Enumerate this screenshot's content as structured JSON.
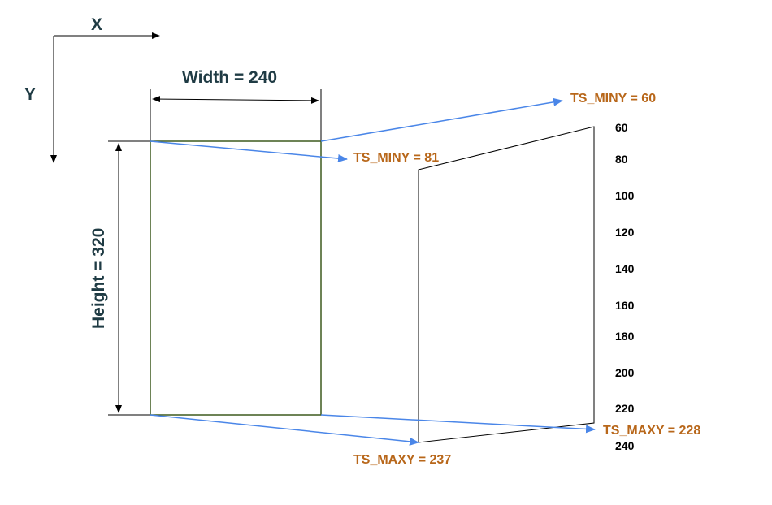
{
  "axes": {
    "x_label": "X",
    "y_label": "Y"
  },
  "dimensions": {
    "width_label": "Width = 240",
    "height_label": "Height = 320"
  },
  "annotations": {
    "ts_miny_right": "TS_MINY = 60",
    "ts_miny_left": "TS_MINY = 81",
    "ts_maxy_right": "TS_MAXY = 228",
    "ts_maxy_left": "TS_MAXY = 237"
  },
  "scale_ticks": [
    "60",
    "80",
    "100",
    "120",
    "140",
    "160",
    "180",
    "200",
    "220",
    "240"
  ],
  "colors": {
    "rect_border": "#3d5a1e",
    "arrow": "#4a86e8",
    "annotation_text": "#b8671a",
    "dimension_text": "#1f3b44"
  }
}
